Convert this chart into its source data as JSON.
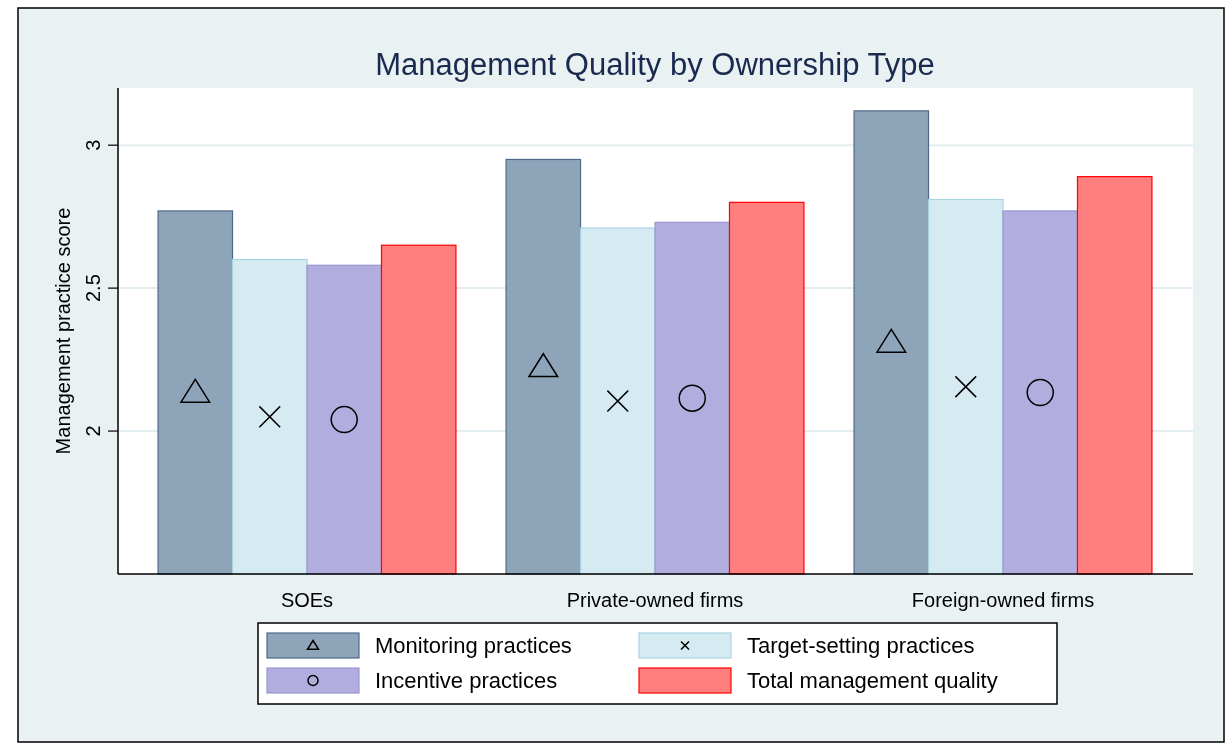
{
  "chart_data": {
    "type": "bar",
    "title": "Management Quality by Ownership Type",
    "ylabel": "Management practice score",
    "categories": [
      "SOEs",
      "Private-owned firms",
      "Foreign-owned firms"
    ],
    "series": [
      {
        "name": "Monitoring practices",
        "color": "#8ea4b8",
        "marker": "triangle",
        "values": [
          2.77,
          2.95,
          3.12
        ]
      },
      {
        "name": "Target-setting practices",
        "color": "#d6eaf1",
        "marker": "cross",
        "values": [
          2.6,
          2.71,
          2.81
        ]
      },
      {
        "name": "Incentive practices",
        "color": "#b1addf",
        "marker": "circle",
        "values": [
          2.58,
          2.73,
          2.77
        ]
      },
      {
        "name": "Total management quality",
        "color": "#ff7f7f",
        "values": [
          2.65,
          2.8,
          2.89
        ]
      }
    ],
    "ylim": [
      1.5,
      3.2
    ],
    "yticks": [
      2,
      2.5,
      3
    ],
    "grid": "y",
    "legend": "bottom"
  }
}
